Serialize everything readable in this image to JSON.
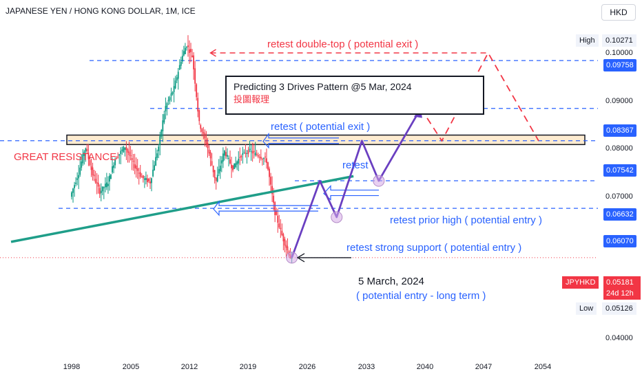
{
  "header": {
    "title": "JAPANESE YEN / HONG KONG DOLLAR, 1M, ICE",
    "currency_button": "HKD"
  },
  "price_axis": {
    "ticks": [
      "0.10000",
      "0.09000",
      "0.08000",
      "0.07000",
      "0.04000"
    ],
    "high_label": "High",
    "high_value": "0.10271",
    "low_label": "Low",
    "low_value": "0.05126",
    "levels": [
      "0.09758",
      "0.08367",
      "0.07542",
      "0.06632",
      "0.06070"
    ],
    "symbol": "JPYHKD",
    "last_price": "0.05181",
    "countdown": "24d 12h"
  },
  "time_axis": {
    "ticks": [
      "1998",
      "2005",
      "2012",
      "2019",
      "2026",
      "2033",
      "2040",
      "2047",
      "2054"
    ]
  },
  "annotations": {
    "double_top": "retest double-top ( potential exit )",
    "box_title": "Predicting 3 Drives Pattern @5 Mar, 2024",
    "box_subtitle": "投圖報理",
    "retest_exit": "retest ( potential exit )",
    "great_resistance": "GREAT RESISTANCE",
    "retest": "retest",
    "retest_prior_high": "retest prior high  ( potential entry )",
    "retest_strong_support": "retest strong support  ( potential entry )",
    "march_date": "5 March, 2024",
    "long_term": "( potential entry - long term )"
  },
  "colors": {
    "up": "#089981",
    "down": "#f23645",
    "blue": "#2962ff",
    "purple": "#6a3fc1",
    "trendline": "#1f9e89",
    "zone": "#fdebd0"
  },
  "chart_data": {
    "type": "candlestick",
    "title": "JAPANESE YEN / HONG KONG DOLLAR, 1M, ICE",
    "xlabel": "",
    "ylabel": "",
    "x_ticks": [
      1998,
      2005,
      2012,
      2019,
      2026,
      2033,
      2040,
      2047,
      2054
    ],
    "y_scale": "log",
    "ylim": [
      0.038,
      0.112
    ],
    "y_ticks": [
      0.1,
      0.09,
      0.08,
      0.07,
      0.04
    ],
    "horizontal_levels": [
      0.09758,
      0.08367,
      0.07542,
      0.06632,
      0.0607
    ],
    "price_path": [
      {
        "x": 1998.0,
        "y": 0.063
      },
      {
        "x": 1999.0,
        "y": 0.068
      },
      {
        "x": 1999.8,
        "y": 0.074
      },
      {
        "x": 2000.6,
        "y": 0.068
      },
      {
        "x": 2001.5,
        "y": 0.064
      },
      {
        "x": 2002.5,
        "y": 0.066
      },
      {
        "x": 2003.3,
        "y": 0.071
      },
      {
        "x": 2004.5,
        "y": 0.074
      },
      {
        "x": 2005.5,
        "y": 0.07
      },
      {
        "x": 2006.5,
        "y": 0.067
      },
      {
        "x": 2007.5,
        "y": 0.066
      },
      {
        "x": 2008.5,
        "y": 0.074
      },
      {
        "x": 2009.3,
        "y": 0.084
      },
      {
        "x": 2010.3,
        "y": 0.089
      },
      {
        "x": 2011.2,
        "y": 0.098
      },
      {
        "x": 2011.8,
        "y": 0.1027
      },
      {
        "x": 2012.5,
        "y": 0.099
      },
      {
        "x": 2013.3,
        "y": 0.08
      },
      {
        "x": 2014.3,
        "y": 0.074
      },
      {
        "x": 2015.3,
        "y": 0.066
      },
      {
        "x": 2016.3,
        "y": 0.073
      },
      {
        "x": 2017.3,
        "y": 0.069
      },
      {
        "x": 2018.3,
        "y": 0.072
      },
      {
        "x": 2019.3,
        "y": 0.073
      },
      {
        "x": 2020.3,
        "y": 0.072
      },
      {
        "x": 2021.3,
        "y": 0.071
      },
      {
        "x": 2022.3,
        "y": 0.06
      },
      {
        "x": 2023.3,
        "y": 0.055
      },
      {
        "x": 2024.17,
        "y": 0.0518
      }
    ],
    "projection_path": [
      {
        "x": 2024.17,
        "y": 0.0518
      },
      {
        "x": 2027.5,
        "y": 0.0663
      },
      {
        "x": 2029.5,
        "y": 0.059
      },
      {
        "x": 2032.5,
        "y": 0.0754
      },
      {
        "x": 2034.5,
        "y": 0.0663
      },
      {
        "x": 2039.5,
        "y": 0.0837
      }
    ],
    "exit_path": [
      {
        "x": 2039.5,
        "y": 0.0837
      },
      {
        "x": 2042.0,
        "y": 0.0754
      },
      {
        "x": 2047.5,
        "y": 0.1
      },
      {
        "x": 2053.5,
        "y": 0.0754
      }
    ],
    "trendline": [
      {
        "x": 1990.8,
        "y": 0.0545
      },
      {
        "x": 2031.5,
        "y": 0.0673
      }
    ],
    "double_top_line": [
      {
        "x": 2014.5,
        "y": 0.1
      },
      {
        "x": 2047.5,
        "y": 0.1
      }
    ],
    "resistance_zone": [
      0.0745,
      0.0768
    ]
  }
}
